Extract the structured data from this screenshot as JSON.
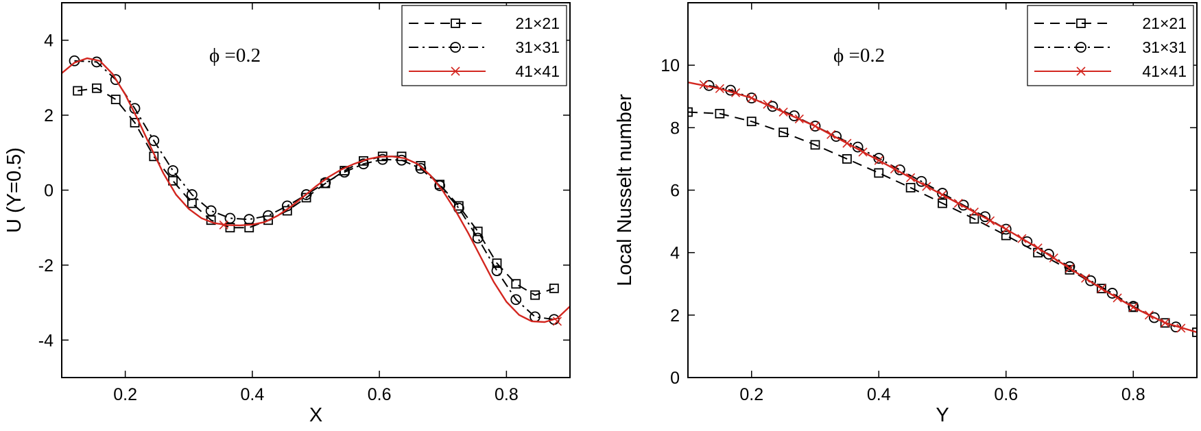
{
  "chart_data": [
    {
      "type": "line",
      "xlabel": "X",
      "ylabel": "U (Y=0.5)",
      "annotation": "ϕ =0.2",
      "xlim": [
        0.1,
        0.9
      ],
      "ylim": [
        -5,
        5
      ],
      "xticks": [
        0.2,
        0.4,
        0.6,
        0.8
      ],
      "xtick_labels": [
        "0.2",
        "0.4",
        "0.6",
        "0.8"
      ],
      "yticks": [
        -4,
        -2,
        0,
        2,
        4
      ],
      "ytick_labels": [
        "-4",
        "-2",
        "0",
        "2",
        "4"
      ],
      "legend_position": "top-right",
      "series": [
        {
          "name": "21×21",
          "marker": "square",
          "dash": "dashed",
          "color": "#000000",
          "x": [
            0.125,
            0.155,
            0.185,
            0.215,
            0.245,
            0.275,
            0.305,
            0.335,
            0.365,
            0.395,
            0.425,
            0.455,
            0.485,
            0.515,
            0.545,
            0.575,
            0.605,
            0.635,
            0.665,
            0.695,
            0.725,
            0.755,
            0.785,
            0.815,
            0.845,
            0.875
          ],
          "y": [
            2.65,
            2.72,
            2.42,
            1.8,
            0.9,
            0.25,
            -0.35,
            -0.8,
            -1.0,
            -1.0,
            -0.8,
            -0.55,
            -0.2,
            0.18,
            0.52,
            0.78,
            0.9,
            0.9,
            0.65,
            0.15,
            -0.42,
            -1.1,
            -1.95,
            -2.5,
            -2.8,
            -2.62
          ]
        },
        {
          "name": "31×31",
          "marker": "circle",
          "dash": "dashdot",
          "color": "#000000",
          "x": [
            0.12,
            0.155,
            0.185,
            0.215,
            0.245,
            0.275,
            0.305,
            0.335,
            0.365,
            0.395,
            0.425,
            0.455,
            0.485,
            0.515,
            0.545,
            0.575,
            0.605,
            0.635,
            0.665,
            0.695,
            0.725,
            0.755,
            0.785,
            0.815,
            0.845,
            0.875
          ],
          "y": [
            3.45,
            3.42,
            2.95,
            2.18,
            1.32,
            0.52,
            -0.12,
            -0.55,
            -0.75,
            -0.78,
            -0.68,
            -0.42,
            -0.12,
            0.2,
            0.48,
            0.7,
            0.82,
            0.8,
            0.58,
            0.12,
            -0.48,
            -1.28,
            -2.15,
            -2.92,
            -3.38,
            -3.45
          ]
        },
        {
          "name": "41×41",
          "marker": "x",
          "dash": "solid",
          "color": "#d3261f",
          "x": [
            0.1,
            0.12,
            0.14,
            0.16,
            0.18,
            0.2,
            0.22,
            0.24,
            0.26,
            0.28,
            0.3,
            0.32,
            0.34,
            0.36,
            0.38,
            0.4,
            0.42,
            0.44,
            0.46,
            0.48,
            0.5,
            0.52,
            0.54,
            0.56,
            0.58,
            0.6,
            0.62,
            0.64,
            0.66,
            0.68,
            0.7,
            0.72,
            0.74,
            0.76,
            0.78,
            0.8,
            0.82,
            0.84,
            0.86,
            0.88,
            0.9
          ],
          "y": [
            3.12,
            3.4,
            3.52,
            3.45,
            3.1,
            2.55,
            1.88,
            1.15,
            0.45,
            -0.12,
            -0.5,
            -0.75,
            -0.88,
            -0.93,
            -0.94,
            -0.92,
            -0.85,
            -0.68,
            -0.45,
            -0.18,
            0.1,
            0.35,
            0.55,
            0.7,
            0.82,
            0.89,
            0.9,
            0.85,
            0.7,
            0.4,
            -0.02,
            -0.55,
            -1.15,
            -1.8,
            -2.45,
            -2.98,
            -3.33,
            -3.5,
            -3.52,
            -3.42,
            -3.1
          ],
          "marker_x": [
            0.355,
            0.88
          ],
          "marker_y": [
            -0.93,
            -3.5
          ]
        }
      ]
    },
    {
      "type": "line",
      "xlabel": "Y",
      "ylabel": "Local Nusselt number",
      "annotation": "ϕ =0.2",
      "xlim": [
        0.1,
        0.9
      ],
      "ylim": [
        0,
        12
      ],
      "xticks": [
        0.2,
        0.4,
        0.6,
        0.8
      ],
      "xtick_labels": [
        "0.2",
        "0.4",
        "0.6",
        "0.8"
      ],
      "yticks": [
        0,
        2,
        4,
        6,
        8,
        10
      ],
      "ytick_labels": [
        "0",
        "2",
        "4",
        "6",
        "8",
        "10"
      ],
      "legend_position": "top-right",
      "series": [
        {
          "name": "21×21",
          "marker": "square",
          "dash": "dashed",
          "color": "#000000",
          "x": [
            0.1,
            0.15,
            0.2,
            0.25,
            0.3,
            0.35,
            0.4,
            0.45,
            0.5,
            0.55,
            0.6,
            0.65,
            0.7,
            0.75,
            0.8,
            0.85,
            0.9
          ],
          "y": [
            8.5,
            8.45,
            8.2,
            7.85,
            7.45,
            7.0,
            6.55,
            6.08,
            5.58,
            5.08,
            4.55,
            4.0,
            3.45,
            2.85,
            2.25,
            1.75,
            1.45
          ]
        },
        {
          "name": "31×31",
          "marker": "circle",
          "dash": "dashdot",
          "color": "#000000",
          "x": [
            0.133,
            0.167,
            0.2,
            0.233,
            0.267,
            0.3,
            0.333,
            0.367,
            0.4,
            0.433,
            0.467,
            0.5,
            0.533,
            0.567,
            0.6,
            0.633,
            0.667,
            0.7,
            0.733,
            0.767,
            0.8,
            0.833,
            0.867
          ],
          "y": [
            9.35,
            9.2,
            8.95,
            8.68,
            8.38,
            8.05,
            7.72,
            7.38,
            7.02,
            6.65,
            6.28,
            5.9,
            5.52,
            5.15,
            4.75,
            4.35,
            3.95,
            3.55,
            3.1,
            2.7,
            2.28,
            1.92,
            1.62
          ]
        },
        {
          "name": "41×41",
          "marker": "x",
          "dash": "solid",
          "color": "#d3261f",
          "x": [
            0.1,
            0.15,
            0.2,
            0.25,
            0.3,
            0.35,
            0.4,
            0.45,
            0.5,
            0.55,
            0.6,
            0.65,
            0.7,
            0.75,
            0.8,
            0.85,
            0.9
          ],
          "y": [
            9.45,
            9.25,
            8.95,
            8.5,
            8.05,
            7.5,
            6.95,
            6.4,
            5.85,
            5.3,
            4.75,
            4.15,
            3.5,
            2.85,
            2.25,
            1.75,
            1.45
          ],
          "marker_x": [
            0.125,
            0.15,
            0.175,
            0.2,
            0.225,
            0.25,
            0.275,
            0.3,
            0.325,
            0.35,
            0.375,
            0.4,
            0.425,
            0.45,
            0.475,
            0.5,
            0.525,
            0.55,
            0.575,
            0.6,
            0.625,
            0.65,
            0.675,
            0.7,
            0.725,
            0.75,
            0.775,
            0.8,
            0.825,
            0.85,
            0.875
          ],
          "marker_y": [
            9.38,
            9.25,
            9.12,
            8.95,
            8.75,
            8.5,
            8.28,
            8.05,
            7.78,
            7.5,
            7.22,
            6.95,
            6.68,
            6.4,
            6.12,
            5.85,
            5.58,
            5.3,
            5.02,
            4.75,
            4.45,
            4.15,
            3.83,
            3.5,
            3.18,
            2.85,
            2.55,
            2.25,
            2.0,
            1.75,
            1.58
          ]
        }
      ]
    }
  ]
}
